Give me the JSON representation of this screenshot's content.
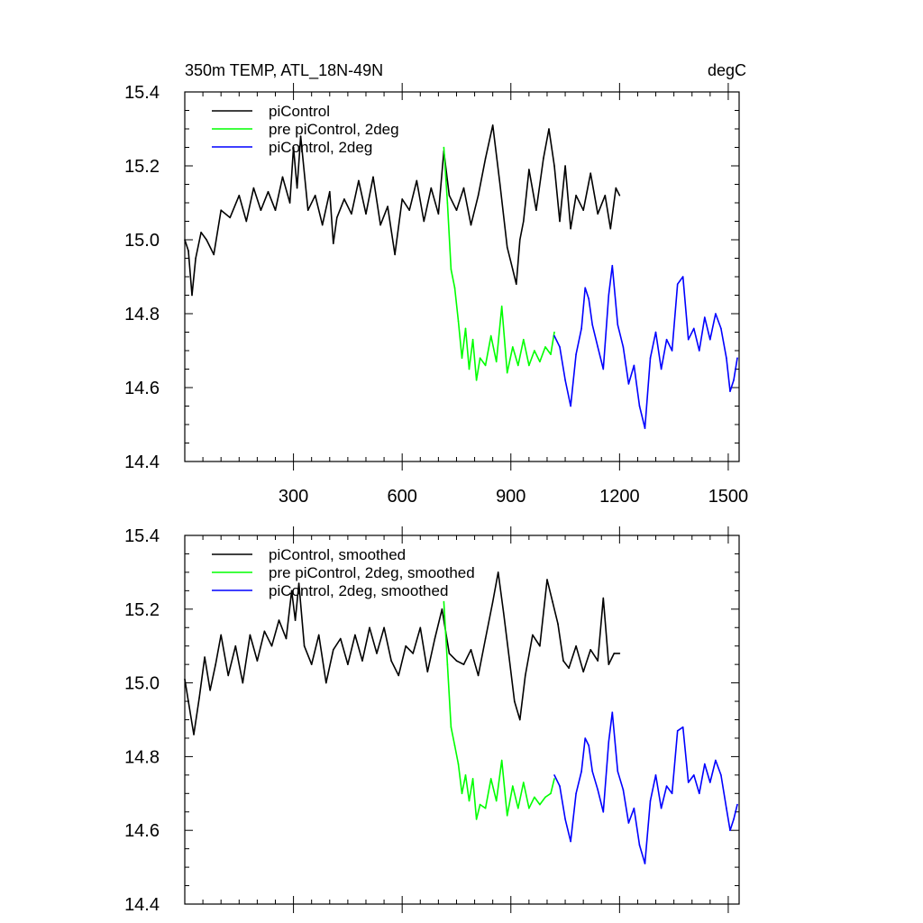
{
  "figure": {
    "title_left": "350m TEMP, ATL_18N-49N",
    "title_right": "degC"
  },
  "chart_data": [
    {
      "type": "line",
      "panel": "raw",
      "xlim": [
        0,
        1530
      ],
      "ylim": [
        14.4,
        15.4
      ],
      "xticks": [
        300,
        600,
        900,
        1200,
        1500
      ],
      "xtick_labels": [
        "300",
        "600",
        "900",
        "1200",
        "1500"
      ],
      "yticks": [
        14.4,
        14.6,
        14.8,
        15.0,
        15.2,
        15.4
      ],
      "ytick_labels": [
        "14.4",
        "14.6",
        "14.8",
        "15.0",
        "15.2",
        "15.4"
      ],
      "xlabel": "",
      "ylabel": "",
      "legend_position": "top-left",
      "series": [
        {
          "name": "piControl",
          "color": "#000000",
          "x": [
            0,
            10,
            20,
            30,
            45,
            60,
            80,
            100,
            125,
            150,
            170,
            190,
            210,
            230,
            250,
            270,
            290,
            300,
            310,
            320,
            340,
            360,
            380,
            400,
            410,
            420,
            440,
            460,
            480,
            500,
            520,
            540,
            560,
            580,
            600,
            620,
            640,
            660,
            680,
            700,
            715,
            730,
            750,
            770,
            790,
            810,
            830,
            850,
            870,
            890,
            905,
            915,
            925,
            935,
            950,
            970,
            990,
            1005,
            1020,
            1035,
            1050,
            1065,
            1080,
            1100,
            1120,
            1140,
            1160,
            1175,
            1190,
            1200
          ],
          "values": [
            15.0,
            14.97,
            14.85,
            14.95,
            15.02,
            15.0,
            14.96,
            15.08,
            15.06,
            15.12,
            15.05,
            15.14,
            15.08,
            15.13,
            15.08,
            15.17,
            15.1,
            15.25,
            15.14,
            15.28,
            15.08,
            15.12,
            15.04,
            15.13,
            14.99,
            15.06,
            15.11,
            15.07,
            15.16,
            15.07,
            15.17,
            15.04,
            15.09,
            14.96,
            15.11,
            15.08,
            15.16,
            15.05,
            15.14,
            15.07,
            15.24,
            15.12,
            15.08,
            15.14,
            15.04,
            15.12,
            15.22,
            15.31,
            15.15,
            14.98,
            14.92,
            14.88,
            15.0,
            15.05,
            15.19,
            15.08,
            15.22,
            15.3,
            15.2,
            15.05,
            15.2,
            15.03,
            15.12,
            15.08,
            15.18,
            15.07,
            15.12,
            15.03,
            15.14,
            15.12
          ]
        },
        {
          "name": "pre piControl, 2deg",
          "color": "#00ff00",
          "x": [
            715,
            725,
            735,
            745,
            755,
            765,
            775,
            785,
            795,
            805,
            815,
            830,
            845,
            860,
            875,
            890,
            905,
            920,
            935,
            950,
            965,
            980,
            995,
            1010,
            1020
          ],
          "values": [
            15.25,
            15.1,
            14.92,
            14.87,
            14.78,
            14.68,
            14.76,
            14.65,
            14.73,
            14.62,
            14.68,
            14.66,
            14.74,
            14.67,
            14.82,
            14.64,
            14.71,
            14.66,
            14.73,
            14.66,
            14.7,
            14.67,
            14.71,
            14.69,
            14.75
          ]
        },
        {
          "name": "piControl, 2deg",
          "color": "#0000ff",
          "x": [
            1020,
            1035,
            1050,
            1065,
            1080,
            1095,
            1105,
            1115,
            1125,
            1140,
            1155,
            1170,
            1180,
            1195,
            1210,
            1225,
            1240,
            1255,
            1270,
            1285,
            1300,
            1315,
            1330,
            1345,
            1360,
            1375,
            1390,
            1405,
            1420,
            1435,
            1450,
            1465,
            1480,
            1495,
            1505,
            1515,
            1525
          ],
          "values": [
            14.74,
            14.71,
            14.62,
            14.55,
            14.69,
            14.76,
            14.87,
            14.84,
            14.77,
            14.71,
            14.65,
            14.85,
            14.93,
            14.77,
            14.71,
            14.61,
            14.66,
            14.55,
            14.49,
            14.68,
            14.75,
            14.65,
            14.73,
            14.7,
            14.88,
            14.9,
            14.73,
            14.76,
            14.7,
            14.79,
            14.73,
            14.8,
            14.76,
            14.68,
            14.59,
            14.62,
            14.68
          ]
        }
      ]
    },
    {
      "type": "line",
      "panel": "smoothed",
      "xlim": [
        0,
        1530
      ],
      "ylim": [
        14.4,
        15.4
      ],
      "xticks": [
        300,
        600,
        900,
        1200,
        1500
      ],
      "yticks": [
        14.4,
        14.6,
        14.8,
        15.0,
        15.2,
        15.4
      ],
      "ytick_labels": [
        "14.4",
        "14.6",
        "14.8",
        "15.0",
        "15.2",
        "15.4"
      ],
      "xlabel": "",
      "ylabel": "",
      "legend_position": "top-left",
      "series": [
        {
          "name": "piControl, smoothed",
          "color": "#000000",
          "x": [
            0,
            10,
            25,
            40,
            55,
            70,
            85,
            100,
            120,
            140,
            160,
            180,
            200,
            220,
            240,
            260,
            280,
            295,
            305,
            315,
            330,
            350,
            370,
            390,
            410,
            430,
            450,
            470,
            490,
            510,
            530,
            550,
            570,
            590,
            610,
            630,
            650,
            670,
            690,
            710,
            730,
            750,
            770,
            790,
            810,
            830,
            850,
            865,
            880,
            895,
            910,
            925,
            940,
            960,
            980,
            1000,
            1015,
            1030,
            1045,
            1060,
            1080,
            1100,
            1120,
            1140,
            1155,
            1170,
            1185,
            1200
          ],
          "values": [
            15.01,
            14.95,
            14.86,
            14.96,
            15.07,
            14.98,
            15.05,
            15.13,
            15.02,
            15.1,
            15.0,
            15.13,
            15.06,
            15.14,
            15.1,
            15.17,
            15.12,
            15.25,
            15.17,
            15.27,
            15.1,
            15.05,
            15.13,
            15.0,
            15.09,
            15.12,
            15.05,
            15.13,
            15.06,
            15.15,
            15.08,
            15.15,
            15.06,
            15.02,
            15.1,
            15.08,
            15.15,
            15.03,
            15.12,
            15.2,
            15.08,
            15.06,
            15.05,
            15.09,
            15.02,
            15.12,
            15.22,
            15.3,
            15.19,
            15.07,
            14.95,
            14.9,
            15.02,
            15.13,
            15.1,
            15.28,
            15.22,
            15.16,
            15.06,
            15.04,
            15.1,
            15.03,
            15.09,
            15.06,
            15.23,
            15.05,
            15.08,
            15.08
          ]
        },
        {
          "name": "pre piControl, 2deg, smoothed",
          "color": "#00ff00",
          "x": [
            715,
            725,
            735,
            745,
            755,
            765,
            775,
            785,
            795,
            805,
            815,
            830,
            845,
            860,
            875,
            890,
            905,
            920,
            935,
            950,
            965,
            980,
            995,
            1010,
            1020
          ],
          "values": [
            15.22,
            15.05,
            14.88,
            14.83,
            14.78,
            14.7,
            14.75,
            14.68,
            14.74,
            14.63,
            14.67,
            14.66,
            14.74,
            14.68,
            14.79,
            14.64,
            14.72,
            14.66,
            14.73,
            14.66,
            14.69,
            14.67,
            14.69,
            14.7,
            14.74
          ]
        },
        {
          "name": "piControl, 2deg, smoothed",
          "color": "#0000ff",
          "x": [
            1020,
            1035,
            1050,
            1065,
            1080,
            1095,
            1105,
            1115,
            1125,
            1140,
            1155,
            1170,
            1180,
            1195,
            1210,
            1225,
            1240,
            1255,
            1270,
            1285,
            1300,
            1315,
            1330,
            1345,
            1360,
            1375,
            1390,
            1405,
            1420,
            1435,
            1450,
            1465,
            1480,
            1495,
            1505,
            1515,
            1525
          ],
          "values": [
            14.75,
            14.72,
            14.63,
            14.57,
            14.7,
            14.76,
            14.85,
            14.83,
            14.76,
            14.71,
            14.65,
            14.84,
            14.92,
            14.76,
            14.71,
            14.62,
            14.66,
            14.56,
            14.51,
            14.68,
            14.75,
            14.66,
            14.72,
            14.7,
            14.87,
            14.88,
            14.73,
            14.75,
            14.7,
            14.78,
            14.73,
            14.79,
            14.75,
            14.66,
            14.6,
            14.63,
            14.67
          ]
        }
      ]
    }
  ]
}
